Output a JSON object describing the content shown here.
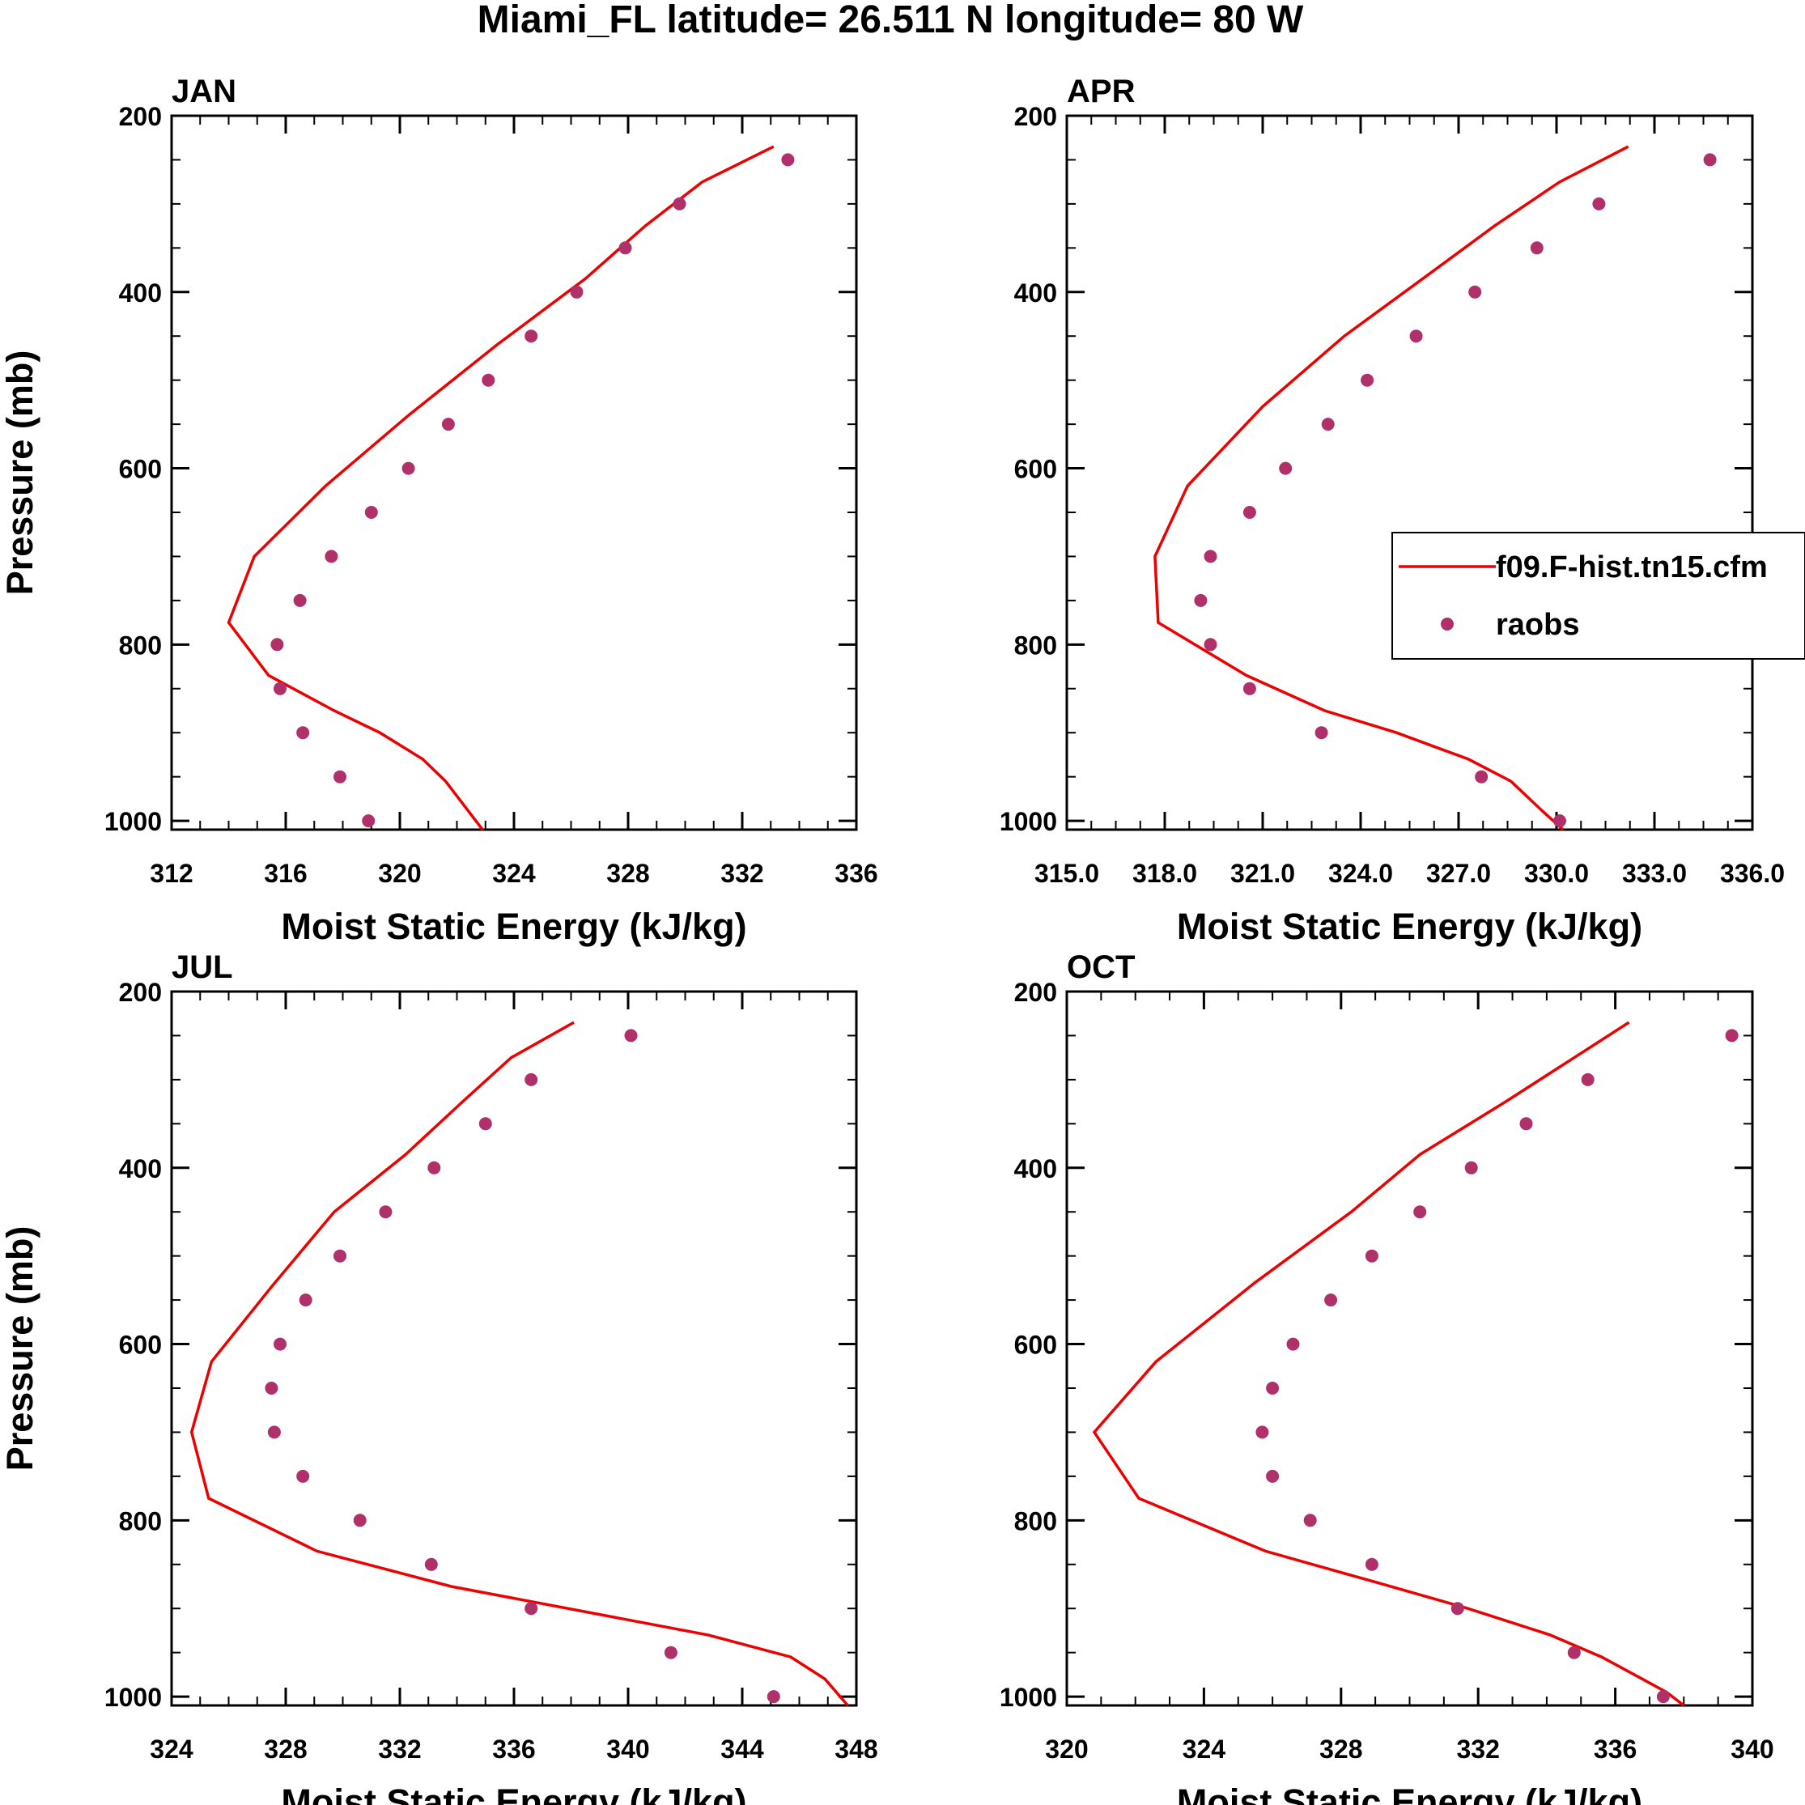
{
  "chart_data": {
    "title": "Miami_FL  latitude= 26.511 N longitude= 80 W",
    "type": "line",
    "legend": {
      "placement": "inside APR panel, right edge",
      "entries": [
        {
          "label": "f09.F-hist.tn15.cfm",
          "marker": "line",
          "color": "#ee0000"
        },
        {
          "label": "raobs",
          "marker": "dot",
          "color": "#b0306a"
        }
      ]
    },
    "panels": [
      {
        "label": "JAN",
        "xlabel": "Moist Static Energy (kJ/kg)",
        "ylabel": "Pressure (mb)",
        "xlim": [
          312,
          336
        ],
        "ylim": [
          1010,
          200
        ],
        "xticks": [
          312,
          316,
          320,
          324,
          328,
          332,
          336
        ],
        "xtick_labels": [
          "312",
          "316",
          "320",
          "324",
          "328",
          "332",
          "336"
        ],
        "yticks": [
          200,
          400,
          600,
          800,
          1000
        ],
        "ytick_labels": [
          "200",
          "400",
          "600",
          "800",
          "1000"
        ],
        "series": [
          {
            "name": "f09.F-hist.tn15.cfm",
            "pressure": [
              1010,
              955,
              930,
              900,
              875,
              835,
              775,
              700,
              620,
              540,
              460,
              385,
              325,
              275,
              235
            ],
            "mse": [
              322.9,
              321.6,
              320.8,
              319.3,
              317.7,
              315.4,
              314.0,
              314.9,
              317.4,
              320.3,
              323.4,
              326.5,
              328.6,
              330.6,
              333.1
            ]
          },
          {
            "name": "raobs",
            "pressure": [
              1000,
              950,
              900,
              850,
              800,
              750,
              700,
              650,
              600,
              550,
              500,
              450,
              400,
              350,
              300,
              250
            ],
            "mse": [
              318.9,
              317.9,
              316.6,
              315.8,
              315.7,
              316.5,
              317.6,
              319.0,
              320.3,
              321.7,
              323.1,
              324.6,
              326.2,
              327.9,
              329.8,
              333.6
            ]
          }
        ]
      },
      {
        "label": "APR",
        "xlabel": "Moist Static Energy (kJ/kg)",
        "ylabel": "",
        "xlim": [
          315,
          336
        ],
        "ylim": [
          1010,
          200
        ],
        "xticks": [
          315,
          318,
          321,
          324,
          327,
          330,
          333,
          336
        ],
        "xtick_labels": [
          "315.0",
          "318.0",
          "321.0",
          "324.0",
          "327.0",
          "330.0",
          "333.0",
          "336.0"
        ],
        "yticks": [
          200,
          400,
          600,
          800,
          1000
        ],
        "ytick_labels": [
          "200",
          "400",
          "600",
          "800",
          "1000"
        ],
        "series": [
          {
            "name": "f09.F-hist.tn15.cfm",
            "pressure": [
              1010,
              990,
              955,
              930,
              900,
              875,
              835,
              775,
              700,
              620,
              530,
              450,
              385,
              325,
              275,
              235
            ],
            "mse": [
              330.2,
              329.6,
              328.6,
              327.3,
              325.1,
              322.9,
              320.5,
              317.8,
              317.7,
              318.7,
              321.0,
              323.5,
              325.9,
              328.1,
              330.1,
              332.2
            ]
          },
          {
            "name": "raobs",
            "pressure": [
              1000,
              950,
              900,
              850,
              800,
              750,
              700,
              650,
              600,
              550,
              500,
              450,
              400,
              350,
              300,
              250
            ],
            "mse": [
              330.1,
              327.7,
              322.8,
              320.6,
              319.4,
              319.1,
              319.4,
              320.6,
              321.7,
              323.0,
              324.2,
              325.7,
              327.5,
              329.4,
              331.3,
              334.7
            ]
          }
        ]
      },
      {
        "label": "JUL",
        "xlabel": "Moist Static Energy (kJ/kg)",
        "ylabel": "Pressure (mb)",
        "xlim": [
          324,
          348
        ],
        "ylim": [
          1010,
          200
        ],
        "xticks": [
          324,
          328,
          332,
          336,
          340,
          344,
          348
        ],
        "xtick_labels": [
          "324",
          "328",
          "332",
          "336",
          "340",
          "344",
          "348"
        ],
        "yticks": [
          200,
          400,
          600,
          800,
          1000
        ],
        "ytick_labels": [
          "200",
          "400",
          "600",
          "800",
          "1000"
        ],
        "series": [
          {
            "name": "f09.F-hist.tn15.cfm",
            "pressure": [
              1010,
              980,
              955,
              930,
              875,
              835,
              775,
              700,
              620,
              535,
              450,
              385,
              325,
              275,
              235
            ],
            "mse": [
              347.7,
              346.9,
              345.7,
              342.8,
              333.8,
              329.1,
              325.3,
              324.7,
              325.4,
              327.5,
              329.7,
              332.2,
              334.2,
              335.9,
              338.1
            ]
          },
          {
            "name": "raobs",
            "pressure": [
              1000,
              950,
              900,
              850,
              800,
              750,
              700,
              650,
              600,
              550,
              500,
              450,
              400,
              350,
              300,
              250
            ],
            "mse": [
              345.1,
              341.5,
              336.6,
              333.1,
              330.6,
              328.6,
              327.6,
              327.5,
              327.8,
              328.7,
              329.9,
              331.5,
              333.2,
              335.0,
              336.6,
              340.1
            ]
          }
        ]
      },
      {
        "label": "OCT",
        "xlabel": "Moist Static Energy (kJ/kg)",
        "ylabel": "",
        "xlim": [
          320,
          340
        ],
        "ylim": [
          1010,
          200
        ],
        "xticks": [
          320,
          324,
          328,
          332,
          336,
          340
        ],
        "xtick_labels": [
          "320",
          "324",
          "328",
          "332",
          "336",
          "340"
        ],
        "yticks": [
          200,
          400,
          600,
          800,
          1000
        ],
        "ytick_labels": [
          "200",
          "400",
          "600",
          "800",
          "1000"
        ],
        "series": [
          {
            "name": "f09.F-hist.tn15.cfm",
            "pressure": [
              1010,
              995,
              955,
              930,
              900,
              870,
              835,
              775,
              700,
              620,
              530,
              450,
              385,
              325,
              275,
              235
            ],
            "mse": [
              338.0,
              337.5,
              335.6,
              334.1,
              331.7,
              329.0,
              325.8,
              322.1,
              320.8,
              322.6,
              325.5,
              328.3,
              330.3,
              332.8,
              334.8,
              336.4
            ]
          },
          {
            "name": "raobs",
            "pressure": [
              1000,
              950,
              900,
              850,
              800,
              750,
              700,
              650,
              600,
              550,
              500,
              450,
              400,
              350,
              300,
              250
            ],
            "mse": [
              337.4,
              334.8,
              331.4,
              328.9,
              327.1,
              326.0,
              325.7,
              326.0,
              326.6,
              327.7,
              328.9,
              330.3,
              331.8,
              333.4,
              335.2,
              339.4
            ]
          }
        ]
      }
    ]
  },
  "colors": {
    "model": "#ee0000",
    "obs": "#b0306a",
    "frame": "#000000"
  }
}
